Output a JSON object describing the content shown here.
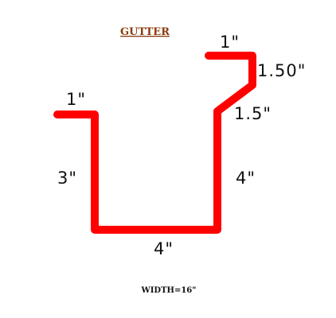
{
  "diagram": {
    "title": "GUTTER",
    "title_color": "#8B3A0E",
    "profile_color": "#FF0000",
    "label_color": "#111111",
    "labels": {
      "left_lip": "1\"",
      "left_wall": "3\"",
      "bottom": "4\"",
      "right_wall": "4\"",
      "slant": "1.5\"",
      "upper_vertical": "1.50\"",
      "top_lip": "1\""
    },
    "footer": "WIDTH=16\""
  }
}
